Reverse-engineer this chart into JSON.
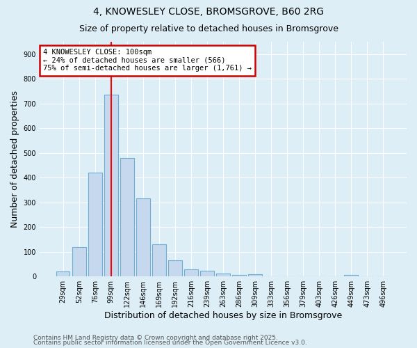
{
  "title1": "4, KNOWESLEY CLOSE, BROMSGROVE, B60 2RG",
  "title2": "Size of property relative to detached houses in Bromsgrove",
  "xlabel": "Distribution of detached houses by size in Bromsgrove",
  "ylabel": "Number of detached properties",
  "categories": [
    "29sqm",
    "52sqm",
    "76sqm",
    "99sqm",
    "122sqm",
    "146sqm",
    "169sqm",
    "192sqm",
    "216sqm",
    "239sqm",
    "263sqm",
    "286sqm",
    "309sqm",
    "333sqm",
    "356sqm",
    "379sqm",
    "403sqm",
    "426sqm",
    "449sqm",
    "473sqm",
    "496sqm"
  ],
  "values": [
    20,
    120,
    420,
    735,
    480,
    315,
    130,
    65,
    28,
    22,
    12,
    5,
    8,
    0,
    0,
    0,
    0,
    0,
    7,
    0,
    0
  ],
  "bar_color": "#c5d8ee",
  "bar_edge_color": "#6baed6",
  "background_color": "#ddeef6",
  "red_line_index": 3,
  "annotation_line1": "4 KNOWESLEY CLOSE: 100sqm",
  "annotation_line2": "← 24% of detached houses are smaller (566)",
  "annotation_line3": "75% of semi-detached houses are larger (1,761) →",
  "annotation_box_color": "#ffffff",
  "annotation_box_edge": "#cc0000",
  "footnote1": "Contains HM Land Registry data © Crown copyright and database right 2025.",
  "footnote2": "Contains public sector information licensed under the Open Government Licence v3.0.",
  "ylim": [
    0,
    950
  ],
  "yticks": [
    0,
    100,
    200,
    300,
    400,
    500,
    600,
    700,
    800,
    900
  ]
}
